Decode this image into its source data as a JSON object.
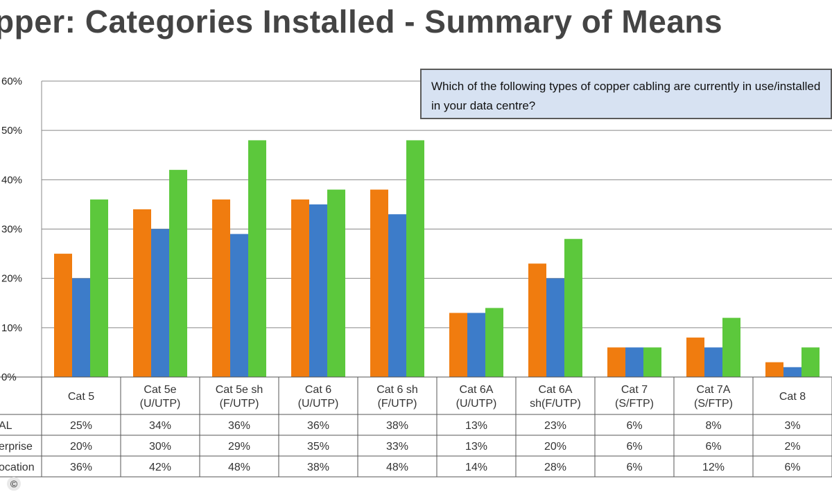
{
  "title": "pper: Categories Installed - Summary of Means",
  "question": "Which of the following types of copper cabling are currently in use/installed in your data centre?",
  "copyright_symbol": "©",
  "chart_data": {
    "type": "bar",
    "title": "pper: Categories Installed - Summary of Means",
    "ylim": [
      0,
      60
    ],
    "yticks": [
      "0%",
      "10%",
      "20%",
      "30%",
      "40%",
      "50%",
      "60%"
    ],
    "grid": true,
    "categories": [
      [
        "Cat 5"
      ],
      [
        "Cat 5e",
        "(U/UTP)"
      ],
      [
        "Cat 5e sh",
        "(F/UTP)"
      ],
      [
        "Cat 6",
        "(U/UTP)"
      ],
      [
        "Cat 6 sh",
        "(F/UTP)"
      ],
      [
        "Cat 6A",
        "(U/UTP)"
      ],
      [
        "Cat 6A",
        "sh(F/UTP)"
      ],
      [
        "Cat 7",
        "(S/FTP)"
      ],
      [
        "Cat 7A",
        "(S/FTP)"
      ],
      [
        "Cat 8"
      ]
    ],
    "series": [
      {
        "name": "AL",
        "color": "#f07c0f",
        "values": [
          25,
          34,
          36,
          36,
          38,
          13,
          23,
          6,
          8,
          3
        ],
        "labels": [
          "25%",
          "34%",
          "36%",
          "36%",
          "38%",
          "13%",
          "23%",
          "6%",
          "8%",
          "3%"
        ]
      },
      {
        "name": "erprise",
        "color": "#3d7cc9",
        "values": [
          20,
          30,
          29,
          35,
          33,
          13,
          20,
          6,
          6,
          2
        ],
        "labels": [
          "20%",
          "30%",
          "29%",
          "35%",
          "33%",
          "13%",
          "20%",
          "6%",
          "6%",
          "2%"
        ]
      },
      {
        "name": "ocation",
        "color": "#5cc83c",
        "values": [
          36,
          42,
          48,
          38,
          48,
          14,
          28,
          6,
          12,
          6
        ],
        "labels": [
          "36%",
          "42%",
          "48%",
          "38%",
          "48%",
          "14%",
          "28%",
          "6%",
          "12%",
          "6%"
        ]
      }
    ]
  }
}
